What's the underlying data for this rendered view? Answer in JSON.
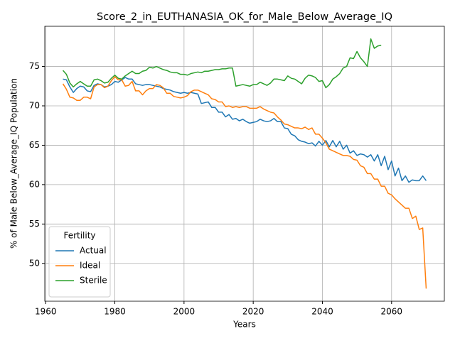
{
  "chart_data": {
    "type": "line",
    "title": "Score_2_in_EUTHANASIA_OK_for_Male_Below_Average_IQ",
    "x_label": "Years",
    "y_label": "% of Male Below_Average_IQ Population",
    "x": [
      1965,
      1966,
      1967,
      1968,
      1969,
      1970,
      1971,
      1972,
      1973,
      1974,
      1975,
      1976,
      1977,
      1978,
      1979,
      1980,
      1981,
      1982,
      1983,
      1984,
      1985,
      1986,
      1987,
      1988,
      1989,
      1990,
      1991,
      1992,
      1993,
      1994,
      1995,
      1996,
      1997,
      1998,
      1999,
      2000,
      2001,
      2002,
      2003,
      2004,
      2005,
      2006,
      2007,
      2008,
      2009,
      2010,
      2011,
      2012,
      2013,
      2014,
      2015,
      2016,
      2017,
      2018,
      2019,
      2020,
      2021,
      2022,
      2023,
      2024,
      2025,
      2026,
      2027,
      2028,
      2029,
      2030,
      2031,
      2032,
      2033,
      2034,
      2035,
      2036,
      2037,
      2038,
      2039,
      2040,
      2041,
      2042,
      2043,
      2044,
      2045,
      2046,
      2047,
      2048,
      2049,
      2050,
      2051,
      2052,
      2053,
      2054,
      2055,
      2056,
      2057,
      2058,
      2059,
      2060,
      2061,
      2062,
      2063,
      2064,
      2065,
      2066,
      2067,
      2068,
      2069,
      2070
    ],
    "series": [
      {
        "name": "Actual",
        "color": "#1f77b4",
        "values": [
          73.4,
          73.3,
          72.4,
          71.7,
          72.2,
          72.5,
          72.4,
          71.9,
          71.8,
          72.6,
          72.8,
          72.7,
          72.4,
          72.5,
          72.7,
          73.1,
          73.0,
          73.3,
          73.6,
          73.4,
          73.4,
          72.8,
          72.7,
          72.6,
          72.7,
          72.7,
          72.6,
          72.5,
          72.4,
          72.2,
          72.1,
          72.0,
          71.8,
          71.7,
          71.6,
          71.7,
          71.6,
          71.7,
          71.6,
          71.5,
          70.3,
          70.4,
          70.5,
          69.8,
          69.8,
          69.2,
          69.2,
          68.6,
          68.9,
          68.3,
          68.4,
          68.1,
          68.3,
          68.0,
          67.8,
          67.9,
          68.0,
          68.3,
          68.1,
          68.0,
          68.1,
          68.4,
          68.0,
          68.0,
          67.2,
          67.1,
          66.4,
          66.2,
          65.7,
          65.5,
          65.4,
          65.2,
          65.3,
          64.9,
          65.5,
          65.0,
          65.6,
          64.8,
          65.6,
          64.8,
          65.5,
          64.5,
          65.0,
          64.0,
          64.3,
          63.7,
          63.9,
          63.8,
          63.5,
          63.8,
          63.0,
          63.8,
          62.4,
          63.6,
          61.9,
          63.0,
          61.1,
          62.1,
          60.5,
          61.1,
          60.3,
          60.6,
          60.5,
          60.5,
          61.1,
          60.5
        ]
      },
      {
        "name": "Ideal",
        "color": "#ff7f0e",
        "values": [
          72.8,
          72.1,
          71.1,
          71.0,
          70.7,
          70.7,
          71.1,
          71.1,
          70.9,
          72.4,
          72.7,
          72.7,
          72.3,
          72.5,
          73.2,
          73.7,
          73.3,
          73.3,
          72.5,
          72.6,
          73.1,
          71.9,
          71.9,
          71.4,
          71.9,
          72.2,
          72.2,
          72.7,
          72.6,
          72.3,
          71.6,
          71.6,
          71.2,
          71.1,
          71.0,
          71.1,
          71.3,
          71.8,
          72.0,
          72.0,
          71.8,
          71.6,
          71.4,
          70.9,
          70.8,
          70.5,
          70.5,
          69.9,
          70.0,
          69.8,
          69.9,
          69.8,
          69.9,
          69.9,
          69.7,
          69.7,
          69.7,
          69.9,
          69.6,
          69.4,
          69.2,
          69.1,
          68.6,
          68.2,
          67.7,
          67.6,
          67.4,
          67.2,
          67.2,
          67.1,
          67.3,
          67.0,
          67.2,
          66.4,
          66.4,
          65.9,
          65.3,
          64.5,
          64.3,
          64.1,
          63.9,
          63.7,
          63.7,
          63.6,
          63.2,
          63.1,
          62.4,
          62.2,
          61.4,
          61.4,
          60.7,
          60.7,
          59.8,
          59.8,
          58.9,
          58.7,
          58.2,
          57.8,
          57.4,
          57.0,
          57.0,
          55.7,
          56.0,
          54.3,
          54.5,
          46.8
        ]
      },
      {
        "name": "Sterile",
        "color": "#2ca02c",
        "values": [
          74.5,
          74.0,
          72.9,
          72.4,
          72.8,
          73.1,
          72.8,
          72.5,
          72.5,
          73.3,
          73.4,
          73.2,
          72.9,
          73.0,
          73.5,
          73.9,
          73.5,
          73.4,
          73.8,
          74.1,
          74.4,
          74.1,
          74.1,
          74.4,
          74.5,
          74.9,
          74.8,
          75.0,
          74.8,
          74.6,
          74.5,
          74.3,
          74.2,
          74.2,
          74.0,
          74.0,
          73.9,
          74.1,
          74.2,
          74.3,
          74.2,
          74.4,
          74.4,
          74.5,
          74.6,
          74.6,
          74.7,
          74.7,
          74.8,
          74.8,
          72.5,
          72.6,
          72.7,
          72.6,
          72.5,
          72.7,
          72.7,
          73.0,
          72.8,
          72.6,
          72.9,
          73.4,
          73.4,
          73.3,
          73.2,
          73.8,
          73.5,
          73.4,
          73.1,
          72.8,
          73.5,
          73.9,
          73.8,
          73.6,
          73.1,
          73.2,
          72.3,
          72.7,
          73.4,
          73.7,
          74.1,
          74.8,
          75.0,
          76.1,
          76.0,
          76.9,
          76.1,
          75.6,
          75.0,
          78.5,
          77.3,
          77.6,
          77.7,
          null,
          null,
          null,
          null,
          null,
          null,
          null,
          null,
          null,
          null,
          null,
          null,
          null
        ]
      }
    ],
    "xlim": [
      1959.75,
      2075.25
    ],
    "xticks": [
      1960,
      1980,
      2000,
      2020,
      2040,
      2060
    ],
    "ylim": [
      45.2,
      80.1
    ],
    "yticks": [
      50,
      55,
      60,
      65,
      70,
      75
    ],
    "grid": true,
    "legend": "lower left",
    "legend_title": "Fertility"
  }
}
